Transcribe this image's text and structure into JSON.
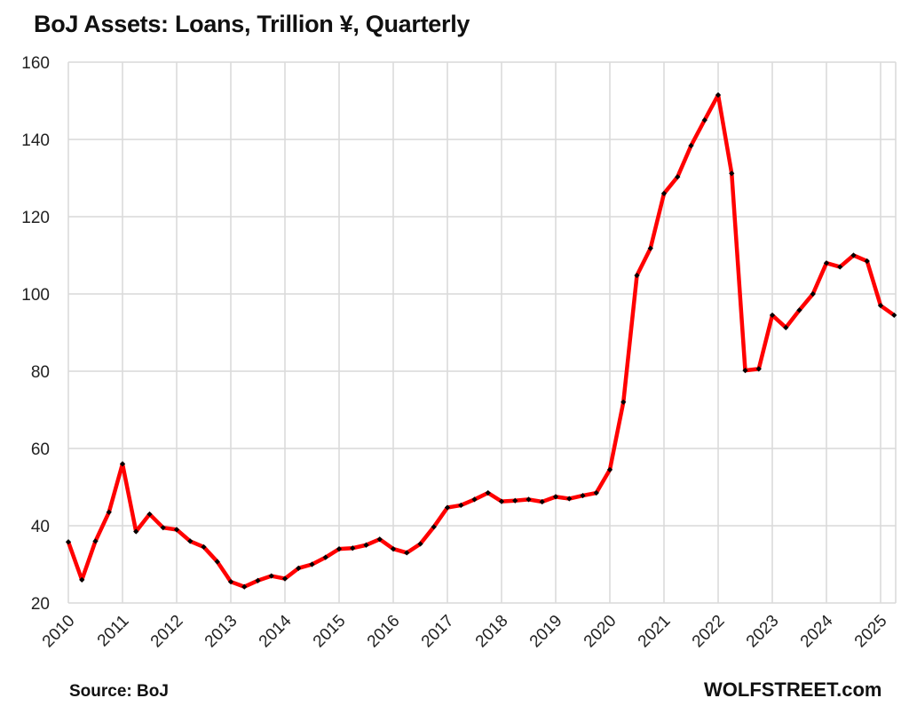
{
  "title": "BoJ Assets: Loans, Trillion ¥, Quarterly",
  "footer": {
    "source": "Source: BoJ",
    "brand": "WOLFSTREET.com"
  },
  "colors": {
    "line": "#ff0000",
    "marker": "#000000",
    "grid": "#d9d9d9"
  },
  "chart_data": {
    "type": "line",
    "title": "BoJ Assets: Loans, Trillion ¥, Quarterly",
    "xlabel": "",
    "ylabel": "",
    "ylim": [
      20,
      160
    ],
    "yticks": [
      20,
      40,
      60,
      80,
      100,
      120,
      140,
      160
    ],
    "xtick_labels": [
      "2010",
      "2011",
      "2012",
      "2013",
      "2014",
      "2015",
      "2016",
      "2017",
      "2018",
      "2019",
      "2020",
      "2021",
      "2022",
      "2023",
      "2024",
      "2025"
    ],
    "grid": true,
    "legend": "none",
    "series": [
      {
        "name": "Loans",
        "x": [
          "2010Q1",
          "2010Q2",
          "2010Q3",
          "2010Q4",
          "2011Q1",
          "2011Q2",
          "2011Q3",
          "2011Q4",
          "2012Q1",
          "2012Q2",
          "2012Q3",
          "2012Q4",
          "2013Q1",
          "2013Q2",
          "2013Q3",
          "2013Q4",
          "2014Q1",
          "2014Q2",
          "2014Q3",
          "2014Q4",
          "2015Q1",
          "2015Q2",
          "2015Q3",
          "2015Q4",
          "2016Q1",
          "2016Q2",
          "2016Q3",
          "2016Q4",
          "2017Q1",
          "2017Q2",
          "2017Q3",
          "2017Q4",
          "2018Q1",
          "2018Q2",
          "2018Q3",
          "2018Q4",
          "2019Q1",
          "2019Q2",
          "2019Q3",
          "2019Q4",
          "2020Q1",
          "2020Q2",
          "2020Q3",
          "2020Q4",
          "2021Q1",
          "2021Q2",
          "2021Q3",
          "2021Q4",
          "2022Q1",
          "2022Q2",
          "2022Q3",
          "2022Q4",
          "2023Q1",
          "2023Q2",
          "2023Q3",
          "2023Q4",
          "2024Q1",
          "2024Q2",
          "2024Q3",
          "2024Q4",
          "2025Q1",
          "2025Q2"
        ],
        "values": [
          35.8,
          26.0,
          36.0,
          43.5,
          56.0,
          38.5,
          43.0,
          39.5,
          39.0,
          36.0,
          34.5,
          30.7,
          25.5,
          24.2,
          25.8,
          27.0,
          26.3,
          29.0,
          30.0,
          31.8,
          34.0,
          34.2,
          35.0,
          36.5,
          34.0,
          33.0,
          35.3,
          39.7,
          44.7,
          45.3,
          46.8,
          48.5,
          46.3,
          46.5,
          46.8,
          46.2,
          47.5,
          47.0,
          47.8,
          48.5,
          54.5,
          72.0,
          104.8,
          111.8,
          126.0,
          130.3,
          138.4,
          145.0,
          151.5,
          131.2,
          80.2,
          80.6,
          94.5,
          91.3,
          95.8,
          100.0,
          108.0,
          107.0,
          110.0,
          108.5,
          97.0,
          94.5
        ]
      }
    ]
  }
}
